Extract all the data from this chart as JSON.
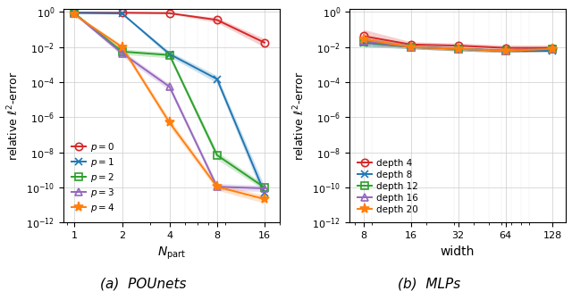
{
  "left_xvalues": [
    1,
    2,
    4,
    8,
    16
  ],
  "left_ylim": [
    1e-12,
    1.5
  ],
  "left_yticks": [
    1.0,
    0.01,
    0.0001,
    1e-06,
    1e-08,
    1e-10,
    1e-12
  ],
  "left_xlabel": "$N_\\mathrm{part}$",
  "left_ylabel": "relative $\\ell^2$-error",
  "left_caption": "(a)  POUnets",
  "left_series": [
    {
      "label": "$p = 0$",
      "color": "#d62728",
      "marker": "o",
      "mean": [
        0.92,
        0.9,
        0.85,
        0.35,
        0.018
      ],
      "lo": [
        0.85,
        0.83,
        0.78,
        0.25,
        0.01
      ],
      "hi": [
        0.99,
        0.97,
        0.92,
        0.48,
        0.03
      ]
    },
    {
      "label": "$p = 1$",
      "color": "#1f77b4",
      "marker": "x",
      "mean": [
        0.88,
        0.82,
        0.004,
        0.00015,
        5e-11
      ],
      "lo": [
        0.82,
        0.76,
        0.0028,
        9e-05,
        2e-11
      ],
      "hi": [
        0.94,
        0.88,
        0.0056,
        0.00024,
        1.2e-10
      ]
    },
    {
      "label": "$p = 2$",
      "color": "#2ca02c",
      "marker": "s",
      "mean": [
        0.84,
        0.0055,
        0.0035,
        7e-09,
        1e-10
      ],
      "lo": [
        0.78,
        0.0038,
        0.0024,
        4e-09,
        7e-11
      ],
      "hi": [
        0.9,
        0.0078,
        0.0049,
        1.1e-08,
        1.5e-10
      ]
    },
    {
      "label": "$p = 3$",
      "color": "#9467bd",
      "marker": "^",
      "mean": [
        0.78,
        0.0045,
        5.5e-05,
        1.1e-10,
        9e-11
      ],
      "lo": [
        0.72,
        0.003,
        3.5e-05,
        7e-11,
        6e-11
      ],
      "hi": [
        0.84,
        0.0064,
        8e-05,
        1.7e-10,
        1.3e-10
      ]
    },
    {
      "label": "$p = 4$",
      "color": "#ff7f0e",
      "marker": "*",
      "mean": [
        0.7,
        0.01,
        5e-07,
        1.1e-10,
        2.2e-11
      ],
      "lo": [
        0.64,
        0.007,
        3e-07,
        7e-11,
        1.3e-11
      ],
      "hi": [
        0.76,
        0.014,
        8e-07,
        1.7e-10,
        3.5e-11
      ]
    }
  ],
  "right_xvalues": [
    8,
    16,
    32,
    64,
    128
  ],
  "right_ylim": [
    1e-12,
    1.5
  ],
  "right_yticks": [
    1.0,
    0.01,
    0.0001,
    1e-06,
    1e-08,
    1e-10,
    1e-12
  ],
  "right_xlabel": "width",
  "right_ylabel": "relative $\\ell^2$-error",
  "right_caption": "(b)  MLPs",
  "right_series": [
    {
      "label": "depth 4",
      "color": "#d62728",
      "marker": "o",
      "mean": [
        0.042,
        0.014,
        0.012,
        0.009,
        0.009
      ],
      "lo": [
        0.018,
        0.01,
        0.009,
        0.007,
        0.007
      ],
      "hi": [
        0.1,
        0.02,
        0.017,
        0.013,
        0.013
      ]
    },
    {
      "label": "depth 8",
      "color": "#1f77b4",
      "marker": "x",
      "mean": [
        0.018,
        0.01,
        0.008,
        0.006,
        0.006
      ],
      "lo": [
        0.01,
        0.008,
        0.006,
        0.005,
        0.005
      ],
      "hi": [
        0.033,
        0.013,
        0.01,
        0.007,
        0.007
      ]
    },
    {
      "label": "depth 12",
      "color": "#2ca02c",
      "marker": "s",
      "mean": [
        0.02,
        0.01,
        0.008,
        0.006,
        0.008
      ],
      "lo": [
        0.011,
        0.008,
        0.006,
        0.005,
        0.006
      ],
      "hi": [
        0.036,
        0.013,
        0.01,
        0.008,
        0.011
      ]
    },
    {
      "label": "depth 16",
      "color": "#9467bd",
      "marker": "^",
      "mean": [
        0.022,
        0.01,
        0.008,
        0.006,
        0.008
      ],
      "lo": [
        0.012,
        0.008,
        0.006,
        0.005,
        0.006
      ],
      "hi": [
        0.04,
        0.013,
        0.01,
        0.008,
        0.011
      ]
    },
    {
      "label": "depth 20",
      "color": "#ff7f0e",
      "marker": "*",
      "mean": [
        0.028,
        0.01,
        0.008,
        0.006,
        0.008
      ],
      "lo": [
        0.015,
        0.008,
        0.006,
        0.005,
        0.006
      ],
      "hi": [
        0.052,
        0.013,
        0.01,
        0.008,
        0.011
      ]
    }
  ]
}
